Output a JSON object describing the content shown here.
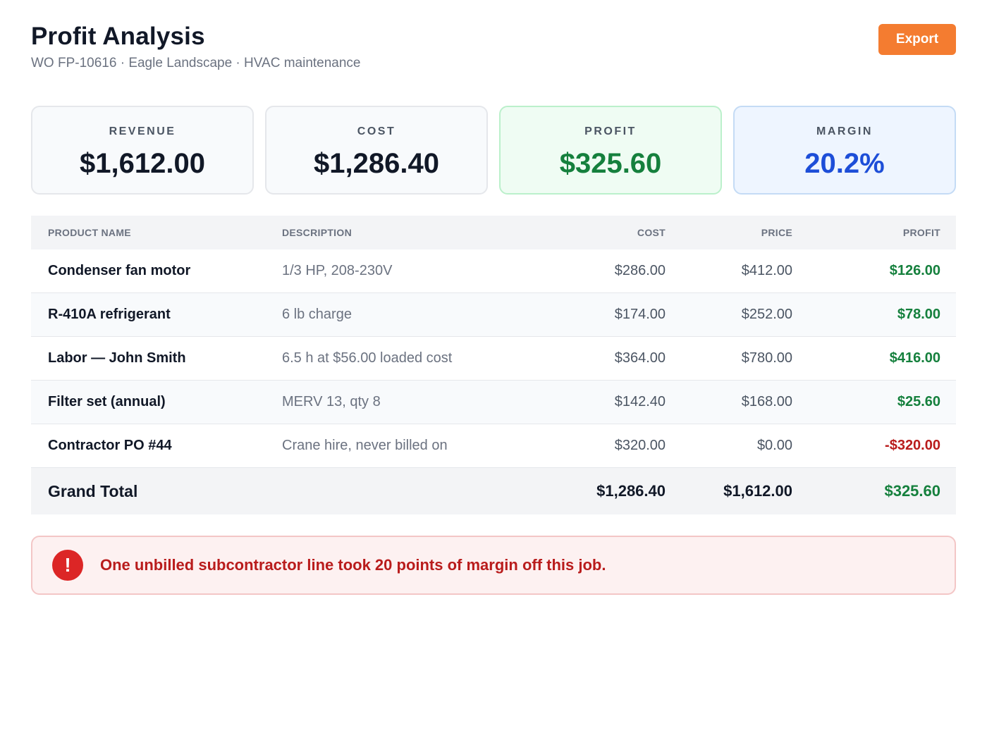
{
  "header": {
    "title": "Profit Analysis",
    "subtitle": "WO FP-10616 · Eagle Landscape · HVAC maintenance",
    "export_label": "Export"
  },
  "summary": {
    "revenue": {
      "label": "REVENUE",
      "value": "$1,612.00"
    },
    "cost": {
      "label": "COST",
      "value": "$1,286.40"
    },
    "profit": {
      "label": "PROFIT",
      "value": "$325.60"
    },
    "margin": {
      "label": "MARGIN",
      "value": "20.2%"
    }
  },
  "table": {
    "columns": {
      "name": "PRODUCT NAME",
      "description": "DESCRIPTION",
      "cost": "COST",
      "price": "PRICE",
      "profit": "PROFIT"
    },
    "rows": [
      {
        "name": "Condenser fan motor",
        "description": "1/3 HP, 208-230V",
        "cost": "$286.00",
        "price": "$412.00",
        "profit": "$126.00"
      },
      {
        "name": "R-410A refrigerant",
        "description": "6 lb charge",
        "cost": "$174.00",
        "price": "$252.00",
        "profit": "$78.00"
      },
      {
        "name": "Labor — John Smith",
        "description": "6.5 h at $56.00 loaded cost",
        "cost": "$364.00",
        "price": "$780.00",
        "profit": "$416.00"
      },
      {
        "name": "Filter set (annual)",
        "description": "MERV 13, qty 8",
        "cost": "$142.40",
        "price": "$168.00",
        "profit": "$25.60"
      },
      {
        "name": "Contractor PO #44",
        "description": "Crane hire, never billed on",
        "cost": "$320.00",
        "price": "$0.00",
        "profit": "-$320.00"
      }
    ],
    "total": {
      "label": "Grand Total",
      "cost": "$1,286.40",
      "price": "$1,612.00",
      "profit": "$325.60"
    }
  },
  "alert": {
    "icon": "!",
    "message": "One unbilled subcontractor line took 20 points of margin off this job."
  },
  "colors": {
    "accent": "#f47c30",
    "positive": "#15803d",
    "negative": "#b91c1c",
    "margin": "#1d4ed8"
  }
}
